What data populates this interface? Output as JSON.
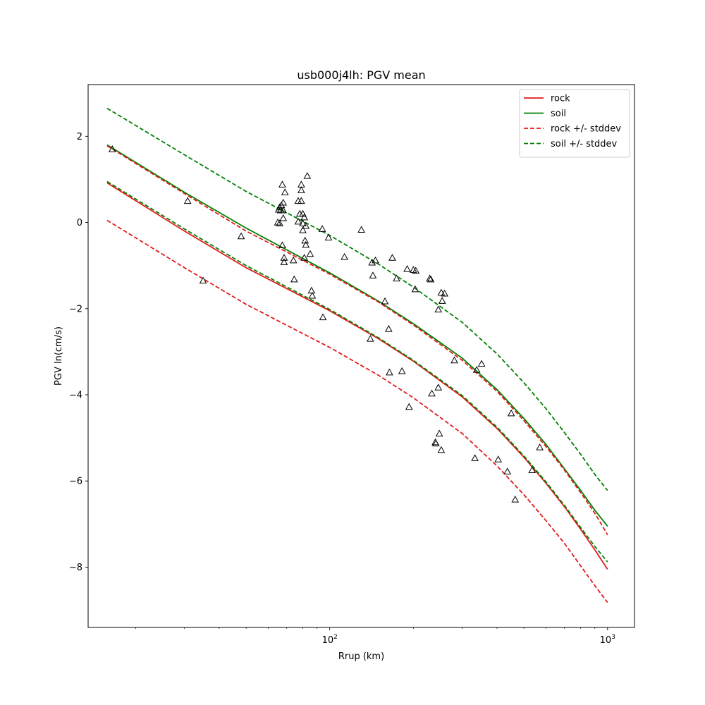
{
  "chart_data": {
    "type": "line",
    "title": "usb000j4lh: PGV mean",
    "xlabel": "Rrup (km)",
    "ylabel": "PGV ln(cm/s)",
    "xscale": "log",
    "xlim": [
      13.5,
      1250
    ],
    "ylim": [
      -9.4,
      3.2
    ],
    "x_ticks": [
      {
        "value": 100,
        "label": "10",
        "exp": "2"
      },
      {
        "value": 1000,
        "label": "10",
        "exp": "3"
      }
    ],
    "y_ticks": [
      {
        "value": 2,
        "label": "2"
      },
      {
        "value": 0,
        "label": "0"
      },
      {
        "value": -2,
        "label": "−2"
      },
      {
        "value": -4,
        "label": "−4"
      },
      {
        "value": -6,
        "label": "−6"
      },
      {
        "value": -8,
        "label": "−8"
      }
    ],
    "legend_position": "top-right",
    "series": [
      {
        "name": "rock",
        "style": "solid",
        "color": "#e31a1c",
        "x": [
          15.8,
          30,
          50,
          100,
          150,
          200,
          300,
          400,
          500,
          600,
          700,
          800,
          900,
          1000
        ],
        "y": [
          0.92,
          -0.2,
          -1.05,
          -2.05,
          -2.7,
          -3.22,
          -4.05,
          -4.78,
          -5.45,
          -6.05,
          -6.6,
          -7.12,
          -7.6,
          -8.05
        ]
      },
      {
        "name": "soil",
        "style": "solid",
        "color": "#008000",
        "x": [
          15.8,
          30,
          50,
          100,
          150,
          200,
          300,
          400,
          500,
          600,
          700,
          800,
          900,
          1000
        ],
        "y": [
          1.8,
          0.7,
          -0.13,
          -1.17,
          -1.83,
          -2.35,
          -3.15,
          -3.88,
          -4.55,
          -5.15,
          -5.72,
          -6.22,
          -6.68,
          -7.05
        ]
      },
      {
        "name": "rock +/- stddev",
        "style": "dashed",
        "color": "#e31a1c",
        "x": [
          15.8,
          30,
          50,
          100,
          150,
          200,
          300,
          400,
          500,
          600,
          700,
          800,
          900,
          1000
        ],
        "y": [
          1.78,
          0.67,
          -0.2,
          -1.2,
          -1.85,
          -2.38,
          -3.2,
          -3.92,
          -4.6,
          -5.2,
          -5.75,
          -6.27,
          -6.75,
          -7.25
        ]
      },
      {
        "name": "rock +/- stddev (lower)",
        "legend": false,
        "style": "dashed",
        "color": "#e31a1c",
        "x": [
          15.8,
          30,
          50,
          100,
          150,
          200,
          300,
          400,
          500,
          600,
          700,
          800,
          900,
          1000
        ],
        "y": [
          0.05,
          -1.05,
          -1.9,
          -2.9,
          -3.55,
          -4.07,
          -4.9,
          -5.65,
          -6.32,
          -6.92,
          -7.45,
          -7.97,
          -8.43,
          -8.82
        ]
      },
      {
        "name": "soil +/- stddev",
        "style": "dashed",
        "color": "#008000",
        "x": [
          15.8,
          30,
          50,
          100,
          150,
          200,
          300,
          400,
          500,
          600,
          700,
          800,
          900,
          1000
        ],
        "y": [
          2.65,
          1.57,
          0.72,
          -0.3,
          -0.97,
          -1.5,
          -2.32,
          -3.05,
          -3.72,
          -4.32,
          -4.88,
          -5.38,
          -5.85,
          -6.22
        ]
      },
      {
        "name": "soil +/- stddev (lower)",
        "legend": false,
        "style": "dashed",
        "color": "#008000",
        "x": [
          15.8,
          30,
          50,
          100,
          150,
          200,
          300,
          400,
          500,
          600,
          700,
          800,
          900,
          1000
        ],
        "y": [
          0.95,
          -0.15,
          -1.0,
          -2.02,
          -2.68,
          -3.2,
          -4.02,
          -4.75,
          -5.42,
          -6.02,
          -6.57,
          -7.08,
          -7.52,
          -7.88
        ]
      }
    ],
    "observations": {
      "name": "observed PGV",
      "marker": "triangle",
      "points": [
        [
          16.5,
          1.7
        ],
        [
          30.8,
          0.5
        ],
        [
          35,
          -1.35
        ],
        [
          48,
          -0.32
        ],
        [
          65,
          0.0
        ],
        [
          65.5,
          0.3
        ],
        [
          66,
          0.35
        ],
        [
          66,
          -0.02
        ],
        [
          66.5,
          0.28
        ],
        [
          67,
          0.4
        ],
        [
          67.5,
          0.88
        ],
        [
          67.5,
          -0.53
        ],
        [
          68,
          0.46
        ],
        [
          68,
          0.1
        ],
        [
          68,
          0.28
        ],
        [
          68.5,
          -0.82
        ],
        [
          68.5,
          -0.92
        ],
        [
          69,
          0.7
        ],
        [
          74,
          -0.88
        ],
        [
          74.5,
          -1.32
        ],
        [
          77,
          0.5
        ],
        [
          77,
          0.02
        ],
        [
          78,
          0.2
        ],
        [
          79,
          0.5
        ],
        [
          79,
          0.75
        ],
        [
          79,
          0.88
        ],
        [
          80,
          0.2
        ],
        [
          80,
          -0.18
        ],
        [
          80,
          -0.02
        ],
        [
          81,
          0.12
        ],
        [
          81,
          -0.82
        ],
        [
          81.5,
          -0.42
        ],
        [
          82,
          -0.52
        ],
        [
          82,
          -0.08
        ],
        [
          83,
          1.08
        ],
        [
          85,
          -0.73
        ],
        [
          86,
          -1.58
        ],
        [
          86.5,
          -1.7
        ],
        [
          94,
          -0.15
        ],
        [
          94.5,
          -2.2
        ],
        [
          99,
          -0.35
        ],
        [
          113,
          -0.8
        ],
        [
          130,
          -0.17
        ],
        [
          140,
          -2.7
        ],
        [
          142,
          -0.93
        ],
        [
          143,
          -1.23
        ],
        [
          146,
          -0.88
        ],
        [
          158,
          -1.83
        ],
        [
          163,
          -2.47
        ],
        [
          164,
          -3.48
        ],
        [
          168,
          -0.82
        ],
        [
          174,
          -1.3
        ],
        [
          182,
          -3.45
        ],
        [
          190,
          -1.08
        ],
        [
          193,
          -4.28
        ],
        [
          200,
          -1.1
        ],
        [
          203,
          -1.55
        ],
        [
          204,
          -1.12
        ],
        [
          229,
          -1.3
        ],
        [
          231,
          -1.32
        ],
        [
          233,
          -3.97
        ],
        [
          240,
          -5.1
        ],
        [
          241,
          -5.13
        ],
        [
          246,
          -3.83
        ],
        [
          246,
          -2.02
        ],
        [
          248,
          -4.9
        ],
        [
          252,
          -5.28
        ],
        [
          252,
          -1.63
        ],
        [
          254,
          -1.82
        ],
        [
          259,
          -1.65
        ],
        [
          281,
          -3.2
        ],
        [
          333,
          -5.47
        ],
        [
          338,
          -3.42
        ],
        [
          352,
          -3.28
        ],
        [
          404,
          -5.5
        ],
        [
          436,
          -5.78
        ],
        [
          450,
          -4.43
        ],
        [
          465,
          -6.43
        ],
        [
          535,
          -5.75
        ],
        [
          570,
          -5.22
        ]
      ]
    }
  }
}
